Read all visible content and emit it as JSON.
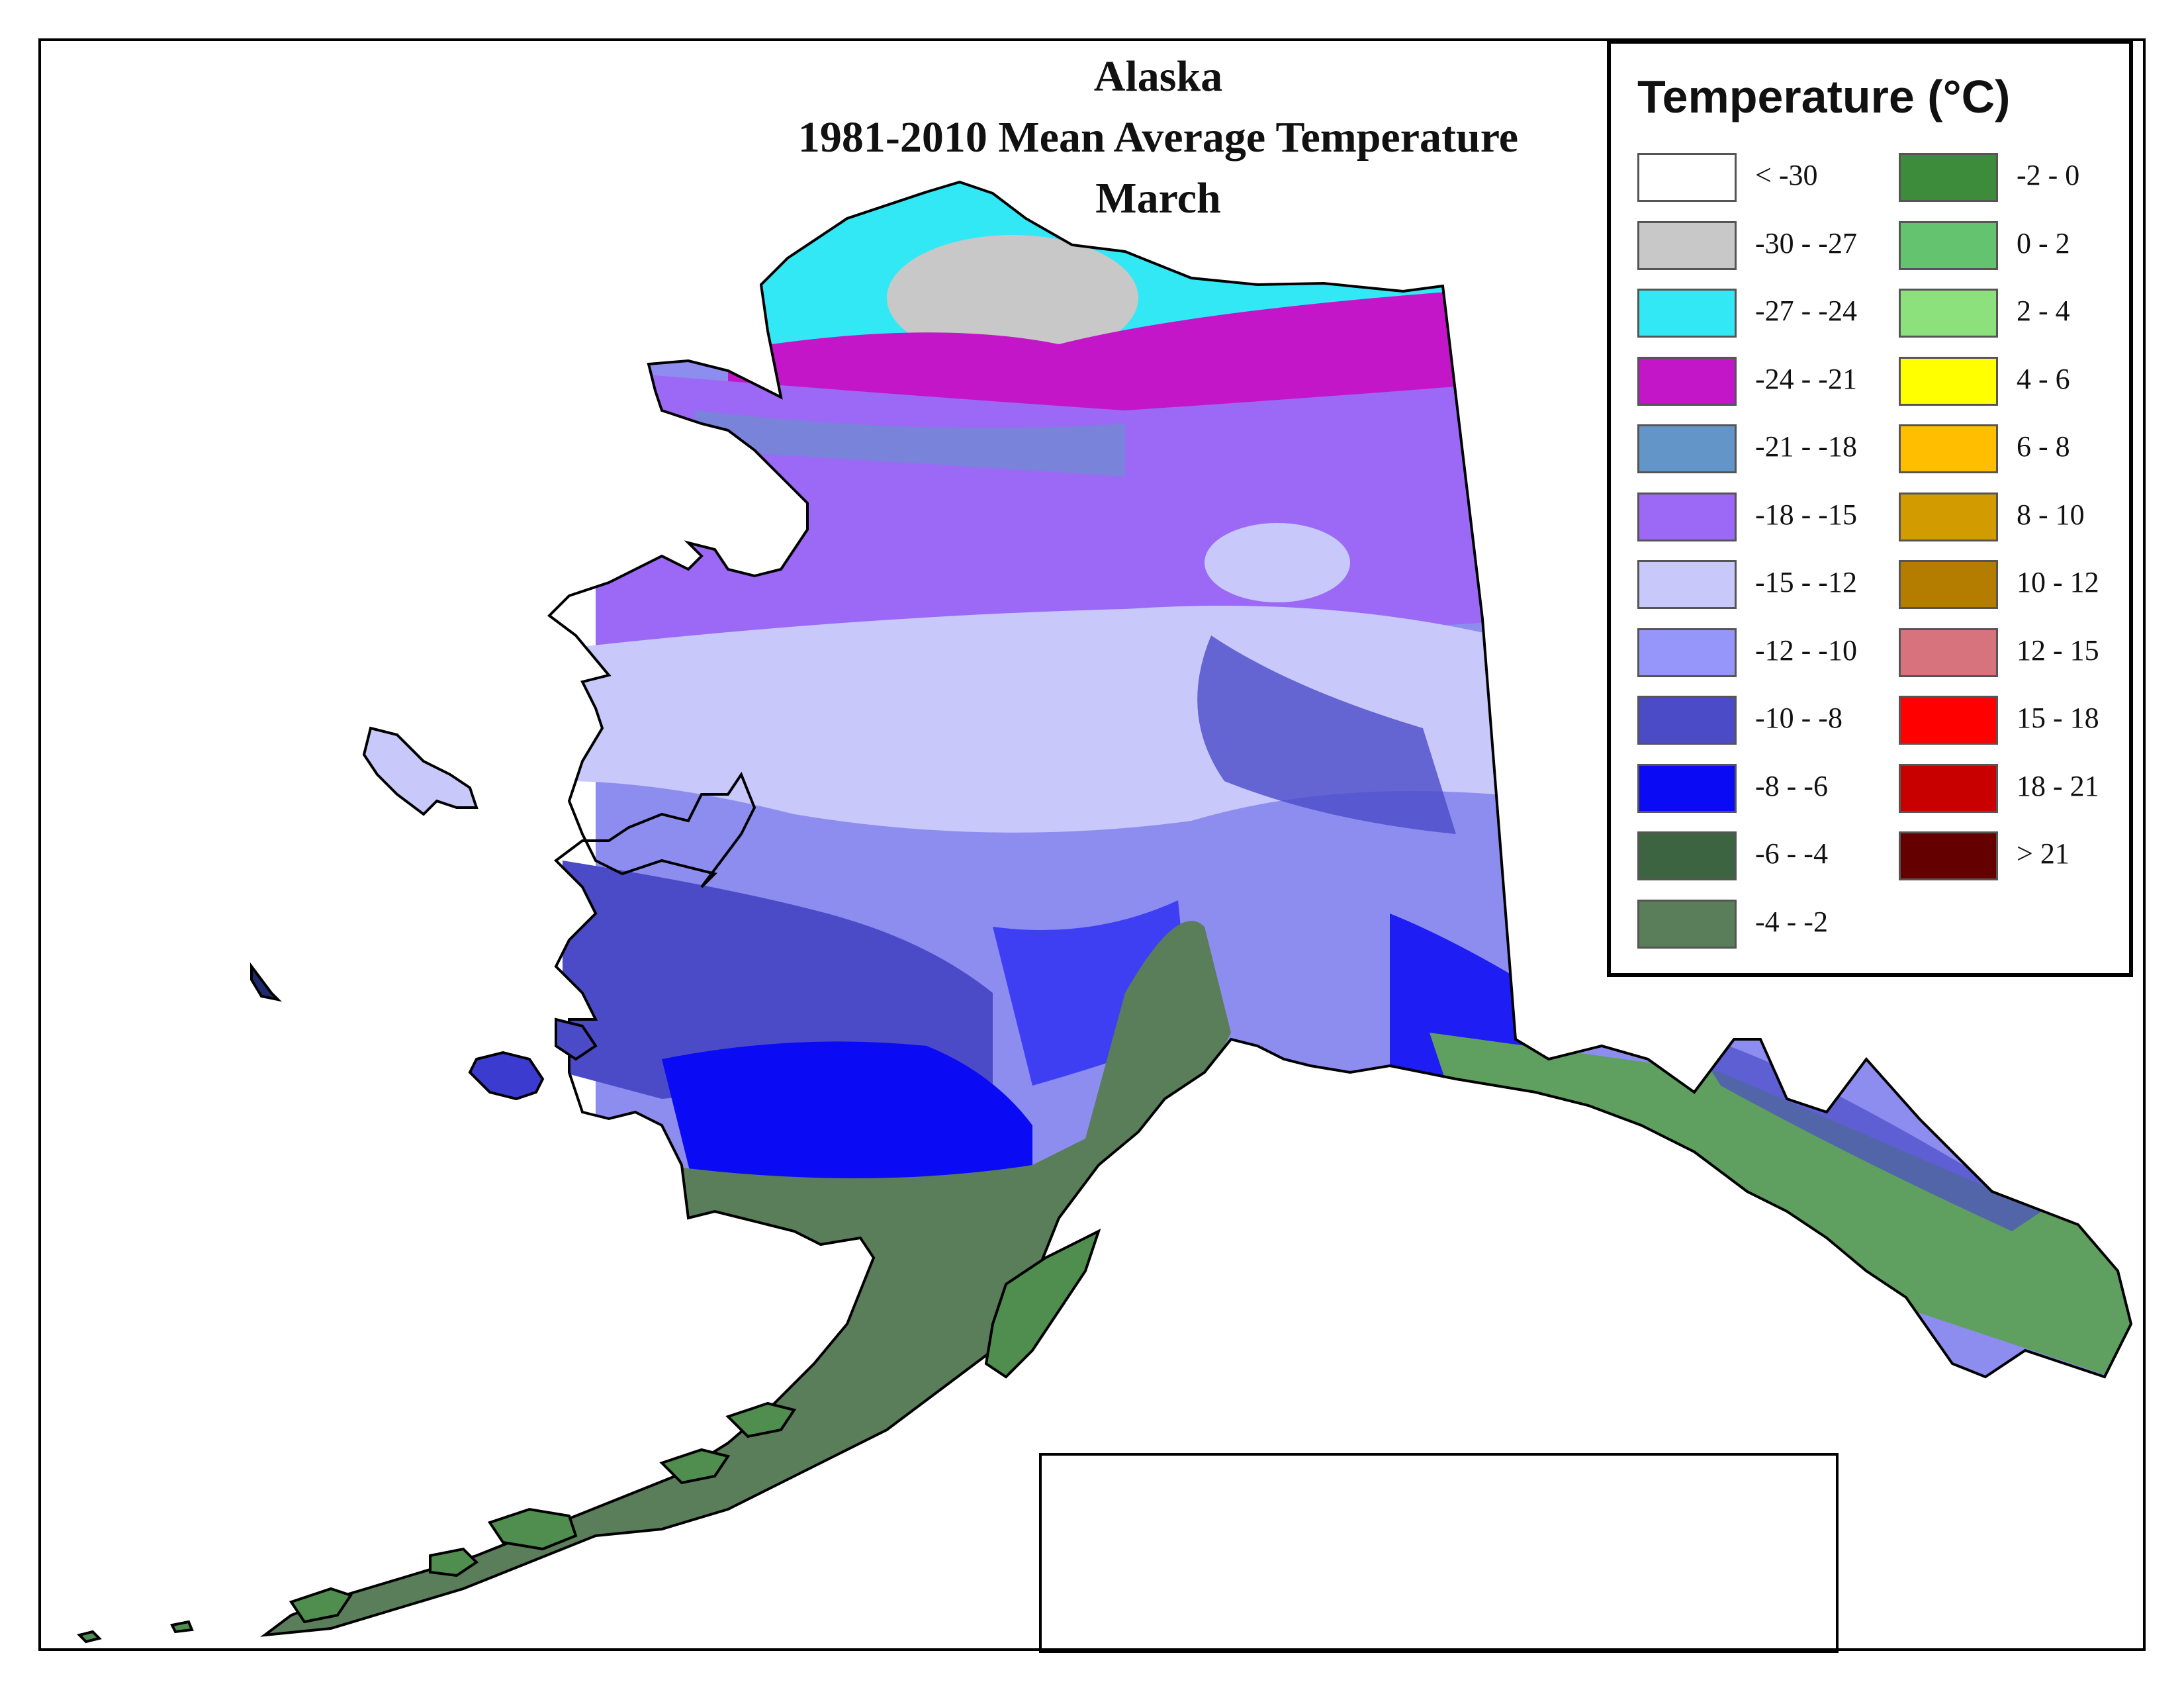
{
  "title": {
    "line1": "Alaska",
    "line2": "1981-2010 Mean Average Temperature",
    "line3": "March"
  },
  "legend": {
    "title": "Temperature (°C)",
    "items": [
      {
        "label": "< -30",
        "color": "#ffffff"
      },
      {
        "label": "-30 - -27",
        "color": "#c8c8c8"
      },
      {
        "label": "-27 - -24",
        "color": "#33e8f5"
      },
      {
        "label": "-24 - -21",
        "color": "#c316c8"
      },
      {
        "label": "-21 - -18",
        "color": "#6495c8"
      },
      {
        "label": "-18 - -15",
        "color": "#9b69f5"
      },
      {
        "label": "-15 - -12",
        "color": "#c8c8fa"
      },
      {
        "label": "-12 - -10",
        "color": "#9696fa"
      },
      {
        "label": "-10 - -8",
        "color": "#4b4bc8"
      },
      {
        "label": "-8 - -6",
        "color": "#0a0af5"
      },
      {
        "label": "-6 - -4",
        "color": "#3c6441"
      },
      {
        "label": "-4 - -2",
        "color": "#5a7d5a"
      },
      {
        "label": "-2 - 0",
        "color": "#3c8c3c"
      },
      {
        "label": "0 - 2",
        "color": "#64c36e"
      },
      {
        "label": "2 - 4",
        "color": "#8ce17d"
      },
      {
        "label": "4 - 6",
        "color": "#ffff00"
      },
      {
        "label": "6 - 8",
        "color": "#ffbe00"
      },
      {
        "label": "8 - 10",
        "color": "#d29b00"
      },
      {
        "label": "10 - 12",
        "color": "#b47d00"
      },
      {
        "label": "12 - 15",
        "color": "#d7737d"
      },
      {
        "label": "15 - 18",
        "color": "#ff0000"
      },
      {
        "label": "18 - 21",
        "color": "#c80000"
      },
      {
        "label": "> 21",
        "color": "#640000"
      }
    ]
  }
}
